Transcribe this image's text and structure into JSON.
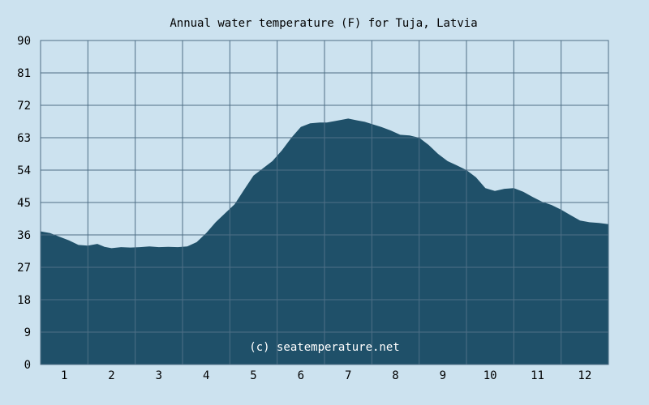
{
  "chart_data": {
    "type": "area",
    "title": "Annual water temperature (F) for Tuja, Latvia",
    "xlabel": "",
    "ylabel": "",
    "x_ticks": [
      "1",
      "2",
      "3",
      "4",
      "5",
      "6",
      "7",
      "8",
      "9",
      "10",
      "11",
      "12"
    ],
    "y_ticks": [
      "0",
      "9",
      "18",
      "27",
      "36",
      "45",
      "54",
      "63",
      "72",
      "81",
      "90"
    ],
    "ylim": [
      0,
      90
    ],
    "xlim": [
      0.5,
      12.5
    ],
    "grid": true,
    "watermark": "(c) seatemperature.net",
    "colors": {
      "background": "#cce2ef",
      "plot_background": "#cce2ef",
      "fill": "#1f5069",
      "grid": "#4f6f86"
    },
    "series": [
      {
        "x": [
          0.5,
          0.7,
          0.9,
          1.1,
          1.3,
          1.5,
          1.7,
          1.85,
          2.0,
          2.2,
          2.4,
          2.6,
          2.8,
          3.0,
          3.2,
          3.4,
          3.6,
          3.8,
          4.0,
          4.2,
          4.4,
          4.6,
          4.8,
          5.0,
          5.2,
          5.4,
          5.6,
          5.8,
          6.0,
          6.2,
          6.4,
          6.55,
          6.75,
          7.0,
          7.2,
          7.35,
          7.5,
          7.7,
          7.9,
          8.1,
          8.3,
          8.5,
          8.7,
          8.9,
          9.1,
          9.3,
          9.5,
          9.7,
          9.9,
          10.1,
          10.3,
          10.5,
          10.7,
          10.9,
          11.1,
          11.3,
          11.5,
          11.7,
          11.9,
          12.1,
          12.3,
          12.5
        ],
        "values": [
          37,
          36.5,
          35.5,
          34.5,
          33.2,
          33.0,
          33.5,
          32.7,
          32.3,
          32.6,
          32.5,
          32.6,
          32.8,
          32.6,
          32.7,
          32.6,
          32.8,
          34.0,
          36.5,
          39.5,
          42.0,
          44.5,
          48.5,
          52.5,
          54.5,
          56.5,
          59.5,
          63.0,
          66.0,
          67.0,
          67.2,
          67.2,
          67.7,
          68.3,
          67.8,
          67.4,
          66.8,
          66.0,
          65.0,
          63.8,
          63.6,
          63.0,
          61.0,
          58.5,
          56.5,
          55.3,
          54.0,
          52.0,
          49.0,
          48.2,
          48.8,
          49.0,
          48.0,
          46.5,
          45.2,
          44.3,
          43.0,
          41.5,
          40.0,
          39.5,
          39.3,
          39.0
        ]
      }
    ]
  }
}
